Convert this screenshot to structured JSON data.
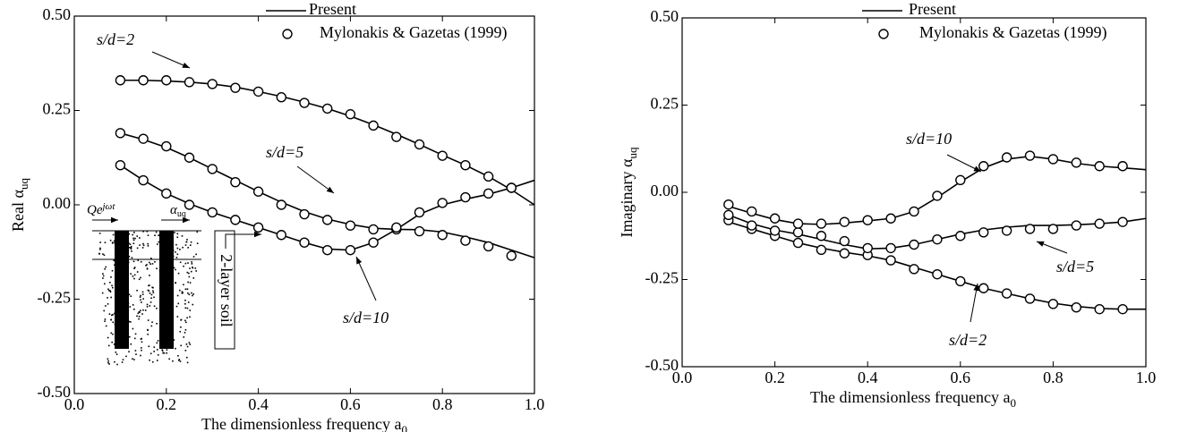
{
  "chart_data": [
    {
      "type": "line",
      "y_label": {
        "text": "Real α",
        "sub": "uq"
      },
      "x_label": {
        "text": "The dimensionless frequency a",
        "sub": "0"
      },
      "legend": [
        {
          "name": "Present",
          "marker": "line"
        },
        {
          "name": "Mylonakis & Gazetas (1999)",
          "marker": "circle"
        }
      ],
      "color": "#000000",
      "xlim": [
        0,
        1
      ],
      "ylim": [
        -0.5,
        0.5
      ],
      "xticks": [
        {
          "value": 0,
          "label": "0.0"
        },
        {
          "value": 0.2,
          "label": "0.2"
        },
        {
          "value": 0.4,
          "label": "0.4"
        },
        {
          "value": 0.6,
          "label": "0.6"
        },
        {
          "value": 0.8,
          "label": "0.8"
        },
        {
          "value": 1,
          "label": "1.0"
        }
      ],
      "yticks": [
        {
          "value": -0.5,
          "label": "-0.50"
        },
        {
          "value": -0.25,
          "label": "-0.25"
        },
        {
          "value": 0,
          "label": "0.00"
        },
        {
          "value": 0.25,
          "label": "0.25"
        },
        {
          "value": 0.5,
          "label": "0.50"
        }
      ],
      "curves": [
        {
          "label": "s/d=2",
          "present": {
            "x": [
              0.1,
              0.15,
              0.2,
              0.25,
              0.3,
              0.35,
              0.4,
              0.45,
              0.5,
              0.55,
              0.6,
              0.65,
              0.7,
              0.75,
              0.8,
              0.85,
              0.9,
              0.95,
              1.0
            ],
            "values": [
              0.33,
              0.33,
              0.328,
              0.325,
              0.32,
              0.312,
              0.3,
              0.287,
              0.272,
              0.255,
              0.235,
              0.212,
              0.187,
              0.16,
              0.132,
              0.105,
              0.075,
              0.04,
              0.0
            ]
          },
          "reference": {
            "x": [
              0.1,
              0.15,
              0.2,
              0.25,
              0.3,
              0.35,
              0.4,
              0.45,
              0.5,
              0.55,
              0.6,
              0.65,
              0.7,
              0.75,
              0.8,
              0.85,
              0.9,
              0.95
            ],
            "values": [
              0.33,
              0.33,
              0.33,
              0.325,
              0.32,
              0.31,
              0.3,
              0.285,
              0.27,
              0.255,
              0.24,
              0.21,
              0.18,
              0.16,
              0.13,
              0.105,
              0.075,
              0.045
            ]
          }
        },
        {
          "label": "s/d=5",
          "present": {
            "x": [
              0.1,
              0.15,
              0.2,
              0.25,
              0.3,
              0.35,
              0.4,
              0.45,
              0.5,
              0.55,
              0.6,
              0.65,
              0.7,
              0.75,
              0.8,
              0.85,
              0.9,
              0.95,
              1.0
            ],
            "values": [
              0.19,
              0.173,
              0.152,
              0.125,
              0.095,
              0.065,
              0.035,
              0.007,
              -0.018,
              -0.038,
              -0.052,
              -0.062,
              -0.065,
              -0.066,
              -0.072,
              -0.085,
              -0.1,
              -0.12,
              -0.14
            ]
          },
          "reference": {
            "x": [
              0.1,
              0.15,
              0.2,
              0.25,
              0.3,
              0.35,
              0.4,
              0.45,
              0.5,
              0.55,
              0.6,
              0.65,
              0.7,
              0.75,
              0.8,
              0.85,
              0.9,
              0.95
            ],
            "values": [
              0.19,
              0.175,
              0.155,
              0.125,
              0.095,
              0.06,
              0.035,
              0.0,
              -0.025,
              -0.04,
              -0.055,
              -0.065,
              -0.065,
              -0.07,
              -0.08,
              -0.095,
              -0.11,
              -0.135
            ]
          }
        },
        {
          "label": "s/d=10",
          "present": {
            "x": [
              0.1,
              0.15,
              0.2,
              0.25,
              0.3,
              0.35,
              0.4,
              0.45,
              0.5,
              0.55,
              0.6,
              0.65,
              0.7,
              0.75,
              0.8,
              0.85,
              0.9,
              0.95,
              1.0
            ],
            "values": [
              0.105,
              0.065,
              0.03,
              0.003,
              -0.02,
              -0.04,
              -0.06,
              -0.08,
              -0.1,
              -0.117,
              -0.12,
              -0.1,
              -0.065,
              -0.025,
              0.0,
              0.015,
              0.028,
              0.045,
              0.065
            ]
          },
          "reference": {
            "x": [
              0.1,
              0.15,
              0.2,
              0.25,
              0.3,
              0.35,
              0.4,
              0.45,
              0.5,
              0.55,
              0.6,
              0.65,
              0.7,
              0.75,
              0.8,
              0.85,
              0.9,
              0.95
            ],
            "values": [
              0.105,
              0.065,
              0.03,
              0.0,
              -0.02,
              -0.04,
              -0.06,
              -0.08,
              -0.1,
              -0.12,
              -0.12,
              -0.1,
              -0.06,
              -0.02,
              0.005,
              0.02,
              0.03,
              0.045
            ]
          }
        }
      ],
      "inset": {
        "load": "Qe",
        "load_sup": "jωt",
        "response": "α",
        "response_sub": "uq",
        "soil": "2-layer soil"
      }
    },
    {
      "type": "line",
      "y_label": {
        "text": "Imaginary α",
        "sub": "uq"
      },
      "x_label": {
        "text": "The dimensionless frequency a",
        "sub": "0"
      },
      "legend": [
        {
          "name": "Present",
          "marker": "line"
        },
        {
          "name": "Mylonakis & Gazetas (1999)",
          "marker": "circle"
        }
      ],
      "color": "#000000",
      "xlim": [
        0,
        1
      ],
      "ylim": [
        -0.5,
        0.5
      ],
      "xticks": [
        {
          "value": 0,
          "label": "0.0"
        },
        {
          "value": 0.2,
          "label": "0.2"
        },
        {
          "value": 0.4,
          "label": "0.4"
        },
        {
          "value": 0.6,
          "label": "0.6"
        },
        {
          "value": 0.8,
          "label": "0.8"
        },
        {
          "value": 1,
          "label": "1.0"
        }
      ],
      "yticks": [
        {
          "value": -0.5,
          "label": "-0.50"
        },
        {
          "value": -0.25,
          "label": "-0.25"
        },
        {
          "value": 0,
          "label": "0.00"
        },
        {
          "value": 0.25,
          "label": "0.25"
        },
        {
          "value": 0.5,
          "label": "0.50"
        }
      ],
      "curves": [
        {
          "label": "s/d=2",
          "present": {
            "x": [
              0.1,
              0.15,
              0.2,
              0.25,
              0.3,
              0.35,
              0.4,
              0.45,
              0.5,
              0.55,
              0.6,
              0.65,
              0.7,
              0.75,
              0.8,
              0.85,
              0.9,
              0.95,
              1.0
            ],
            "values": [
              -0.085,
              -0.105,
              -0.125,
              -0.145,
              -0.16,
              -0.172,
              -0.182,
              -0.195,
              -0.215,
              -0.235,
              -0.255,
              -0.275,
              -0.29,
              -0.305,
              -0.318,
              -0.327,
              -0.333,
              -0.335,
              -0.335
            ]
          },
          "reference": {
            "x": [
              0.1,
              0.15,
              0.2,
              0.25,
              0.3,
              0.35,
              0.4,
              0.45,
              0.5,
              0.55,
              0.6,
              0.65,
              0.7,
              0.75,
              0.8,
              0.85,
              0.9,
              0.95
            ],
            "values": [
              -0.08,
              -0.105,
              -0.125,
              -0.145,
              -0.165,
              -0.175,
              -0.18,
              -0.195,
              -0.22,
              -0.235,
              -0.255,
              -0.275,
              -0.29,
              -0.305,
              -0.32,
              -0.33,
              -0.335,
              -0.335
            ]
          }
        },
        {
          "label": "s/d=5",
          "present": {
            "x": [
              0.1,
              0.15,
              0.2,
              0.25,
              0.3,
              0.35,
              0.4,
              0.45,
              0.5,
              0.55,
              0.6,
              0.65,
              0.7,
              0.75,
              0.8,
              0.85,
              0.9,
              0.95,
              1.0
            ],
            "values": [
              -0.065,
              -0.09,
              -0.108,
              -0.12,
              -0.135,
              -0.15,
              -0.162,
              -0.16,
              -0.15,
              -0.135,
              -0.12,
              -0.108,
              -0.1,
              -0.095,
              -0.095,
              -0.093,
              -0.09,
              -0.085,
              -0.075
            ]
          },
          "reference": {
            "x": [
              0.1,
              0.15,
              0.2,
              0.25,
              0.3,
              0.35,
              0.4,
              0.45,
              0.5,
              0.55,
              0.6,
              0.65,
              0.7,
              0.75,
              0.8,
              0.85,
              0.9,
              0.95
            ],
            "values": [
              -0.065,
              -0.095,
              -0.11,
              -0.115,
              -0.125,
              -0.14,
              -0.16,
              -0.16,
              -0.15,
              -0.135,
              -0.125,
              -0.115,
              -0.11,
              -0.105,
              -0.105,
              -0.095,
              -0.09,
              -0.085
            ]
          }
        },
        {
          "label": "s/d=10",
          "present": {
            "x": [
              0.1,
              0.15,
              0.2,
              0.25,
              0.3,
              0.35,
              0.4,
              0.45,
              0.5,
              0.55,
              0.6,
              0.65,
              0.7,
              0.75,
              0.8,
              0.85,
              0.9,
              0.95,
              1.0
            ],
            "values": [
              -0.04,
              -0.06,
              -0.078,
              -0.09,
              -0.092,
              -0.088,
              -0.082,
              -0.075,
              -0.055,
              -0.015,
              0.03,
              0.07,
              0.095,
              0.103,
              0.095,
              0.083,
              0.075,
              0.07,
              0.065
            ]
          },
          "reference": {
            "x": [
              0.1,
              0.15,
              0.2,
              0.25,
              0.3,
              0.35,
              0.4,
              0.45,
              0.5,
              0.55,
              0.6,
              0.65,
              0.7,
              0.75,
              0.8,
              0.85,
              0.9,
              0.95
            ],
            "values": [
              -0.035,
              -0.055,
              -0.075,
              -0.09,
              -0.09,
              -0.085,
              -0.08,
              -0.075,
              -0.055,
              -0.01,
              0.035,
              0.075,
              0.1,
              0.105,
              0.095,
              0.085,
              0.075,
              0.075
            ]
          }
        }
      ]
    }
  ]
}
